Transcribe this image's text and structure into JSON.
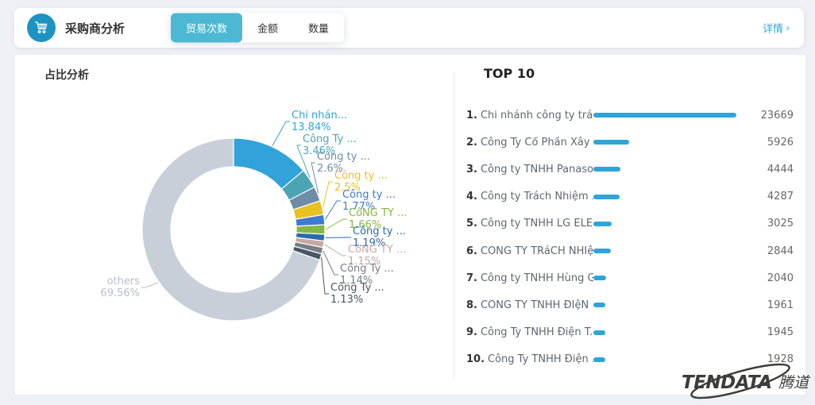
{
  "header": {
    "title": "采购商分析",
    "tabs": [
      {
        "label": "贸易次数",
        "active": true
      },
      {
        "label": "金额",
        "active": false
      },
      {
        "label": "数量",
        "active": false
      }
    ],
    "details": {
      "label": "详情",
      "icon": "›"
    }
  },
  "left_panel": {
    "title": "占比分析"
  },
  "chart_data": {
    "type": "pie",
    "title": "占比分析",
    "donut": true,
    "legend_position": "none",
    "segments": [
      {
        "label": "Chi nhán...",
        "pct": 13.84,
        "pct_label": "13.84%",
        "color": "#32a2da"
      },
      {
        "label": "Công Ty ...",
        "pct": 3.46,
        "pct_label": "3.46%",
        "color": "#4ba4b4"
      },
      {
        "label": "Công ty ...",
        "pct": 2.6,
        "pct_label": "2.6%",
        "color": "#6e8ca6"
      },
      {
        "label": "Công ty ...",
        "pct": 2.5,
        "pct_label": "2.5%",
        "color": "#e8c120"
      },
      {
        "label": "Công ty ...",
        "pct": 1.77,
        "pct_label": "1.77%",
        "color": "#3f7ad0"
      },
      {
        "label": "CôNG TY ...",
        "pct": 1.66,
        "pct_label": "1.66%",
        "color": "#84b843"
      },
      {
        "label": "Công ty ...",
        "pct": 1.19,
        "pct_label": "1.19%",
        "color": "#2a6bad"
      },
      {
        "label": "CôNG TY ...",
        "pct": 1.15,
        "pct_label": "1.15%",
        "color": "#c8a8a2"
      },
      {
        "label": "Công Ty ...",
        "pct": 1.14,
        "pct_label": "1.14%",
        "color": "#757d85"
      },
      {
        "label": "Công Ty ...",
        "pct": 1.13,
        "pct_label": "1.13%",
        "color": "#475864"
      },
      {
        "label": "others",
        "pct": 69.56,
        "pct_label": "69.56%",
        "color": "#c8cfd9",
        "label_color": "#b7c0cc"
      }
    ]
  },
  "top10": {
    "title": "TOP 10",
    "bar_color": "#2da5d9",
    "items": [
      {
        "rank": "1.",
        "name": "Chi nhánh công ty trá...",
        "value": 23669
      },
      {
        "rank": "2.",
        "name": "Công Ty Cổ Phần Xây ...",
        "value": 5926
      },
      {
        "rank": "3.",
        "name": "Công ty TNHH Panaso...",
        "value": 4444
      },
      {
        "rank": "4.",
        "name": "Công ty Trách Nhiệm ...",
        "value": 4287
      },
      {
        "rank": "5.",
        "name": "Công ty TNHH LG ELE...",
        "value": 3025
      },
      {
        "rank": "6.",
        "name": "CÔNG TY TRáCH NHIệ...",
        "value": 2844
      },
      {
        "rank": "7.",
        "name": "Công ty TNHH Hùng Gia",
        "value": 2040
      },
      {
        "rank": "8.",
        "name": "CÔNG TY TNHH ĐIệN ...",
        "value": 1961
      },
      {
        "rank": "9.",
        "name": "Công Ty TNHH Điện T...",
        "value": 1945
      },
      {
        "rank": "10.",
        "name": "Công Ty TNHH Điện ...",
        "value": 1928
      }
    ]
  },
  "watermark": {
    "text": "TENDATA",
    "suffix": "腾道"
  },
  "colors": {
    "accent_blue": "#2aa7d8",
    "active_tab": "#4cb8d4",
    "icon_circle": "#1d93c4",
    "page_bg": "#edf0f4"
  }
}
